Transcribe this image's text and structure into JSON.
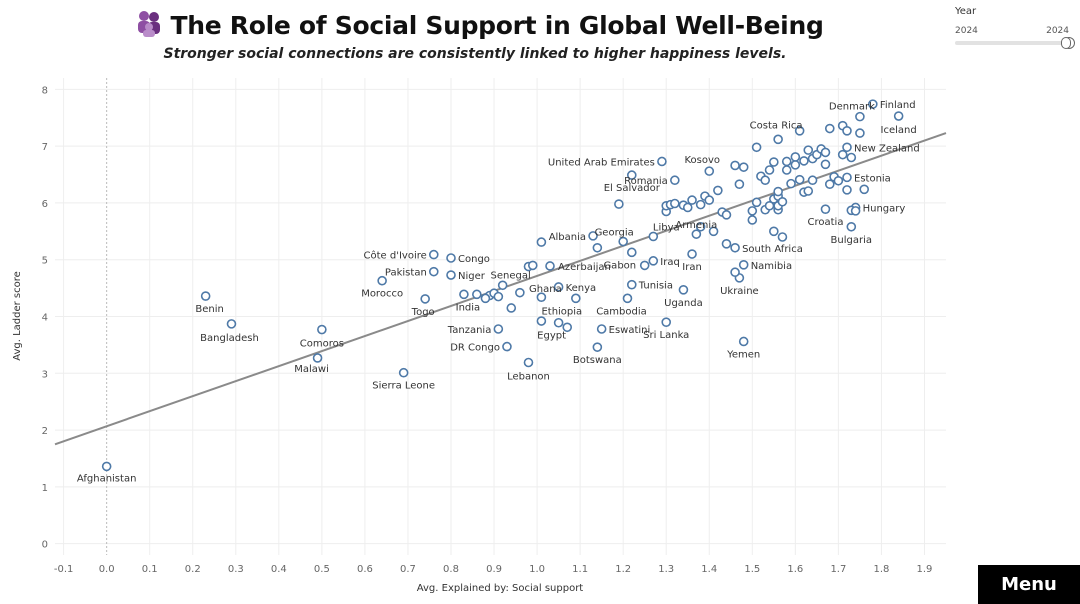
{
  "header": {
    "title": "The Role of Social Support in Global Well-Being",
    "subtitle": "Stronger social connections are consistently linked to higher happiness levels.",
    "icon": "people-group-icon"
  },
  "year_filter": {
    "label": "Year",
    "min_label": "2024",
    "max_label": "2024",
    "value": 2024
  },
  "menu": {
    "label": "Menu"
  },
  "colors": {
    "point": "#4e79a7",
    "trend": "#8a8a8a",
    "grid": "#eeeeee",
    "zero_line": "#bbbbbb",
    "accent_icon": "#7b3f8f"
  },
  "chart_data": {
    "type": "scatter",
    "title": "The Role of Social Support in Global Well-Being",
    "subtitle": "Stronger social connections are consistently linked to higher happiness levels.",
    "xlabel": "Avg. Explained by: Social support",
    "ylabel": "Avg. Ladder score",
    "xlim": [
      -0.12,
      1.95
    ],
    "ylim": [
      -0.2,
      8.2
    ],
    "x_ticks": [
      "-0.1",
      "0.0",
      "0.1",
      "0.2",
      "0.3",
      "0.4",
      "0.5",
      "0.6",
      "0.7",
      "0.8",
      "0.9",
      "1.0",
      "1.1",
      "1.2",
      "1.3",
      "1.4",
      "1.5",
      "1.6",
      "1.7",
      "1.8",
      "1.9"
    ],
    "x_tick_values": [
      -0.1,
      0.0,
      0.1,
      0.2,
      0.3,
      0.4,
      0.5,
      0.6,
      0.7,
      0.8,
      0.9,
      1.0,
      1.1,
      1.2,
      1.3,
      1.4,
      1.5,
      1.6,
      1.7,
      1.8,
      1.9
    ],
    "y_ticks": [
      "0",
      "1",
      "2",
      "3",
      "4",
      "5",
      "6",
      "7",
      "8"
    ],
    "y_tick_values": [
      0,
      1,
      2,
      3,
      4,
      5,
      6,
      7,
      8
    ],
    "grid": true,
    "trend_line": {
      "type": "linear",
      "x": [
        -0.12,
        1.95
      ],
      "y": [
        1.75,
        7.23
      ]
    },
    "points": [
      {
        "label": "Afghanistan",
        "x": 0.0,
        "y": 1.36
      },
      {
        "label": "Benin",
        "x": 0.23,
        "y": 4.36
      },
      {
        "label": "Bangladesh",
        "x": 0.29,
        "y": 3.87
      },
      {
        "label": "Comoros",
        "x": 0.5,
        "y": 3.77
      },
      {
        "label": "Malawi",
        "x": 0.49,
        "y": 3.27
      },
      {
        "label": "Sierra Leone",
        "x": 0.69,
        "y": 3.01
      },
      {
        "label": "Morocco",
        "x": 0.64,
        "y": 4.63
      },
      {
        "label": "Togo",
        "x": 0.74,
        "y": 4.31
      },
      {
        "label": "Pakistan",
        "x": 0.76,
        "y": 4.79
      },
      {
        "label": "Côte d'Ivoire",
        "x": 0.76,
        "y": 5.09
      },
      {
        "label": "Congo",
        "x": 0.8,
        "y": 5.03
      },
      {
        "label": "Niger",
        "x": 0.8,
        "y": 4.73
      },
      {
        "label": "India",
        "x": 0.83,
        "y": 4.39
      },
      {
        "label": "Tanzania",
        "x": 0.91,
        "y": 3.78
      },
      {
        "label": "DR Congo",
        "x": 0.93,
        "y": 3.47
      },
      {
        "label": "Lebanon",
        "x": 0.98,
        "y": 3.19
      },
      {
        "label": "Senegal",
        "x": 0.92,
        "y": 4.55
      },
      {
        "label": "Ghana",
        "x": 1.01,
        "y": 4.34
      },
      {
        "label": "Kenya",
        "x": 1.05,
        "y": 4.52
      },
      {
        "label": "Azerbaijan",
        "x": 1.03,
        "y": 4.89
      },
      {
        "label": "Albania",
        "x": 1.13,
        "y": 5.42
      },
      {
        "label": "Ethiopia",
        "x": 1.09,
        "y": 4.32
      },
      {
        "label": "Egypt",
        "x": 1.05,
        "y": 3.89
      },
      {
        "label": "Eswatini",
        "x": 1.15,
        "y": 3.78
      },
      {
        "label": "Botswana",
        "x": 1.14,
        "y": 3.46
      },
      {
        "label": "Cambodia",
        "x": 1.21,
        "y": 4.32
      },
      {
        "label": "Tunisia",
        "x": 1.22,
        "y": 4.56
      },
      {
        "label": "Gabon",
        "x": 1.22,
        "y": 5.13
      },
      {
        "label": "Iraq",
        "x": 1.27,
        "y": 4.98
      },
      {
        "label": "Georgia",
        "x": 1.2,
        "y": 5.32
      },
      {
        "label": "Libya",
        "x": 1.27,
        "y": 5.41
      },
      {
        "label": "Sri Lanka",
        "x": 1.3,
        "y": 3.9
      },
      {
        "label": "Uganda",
        "x": 1.34,
        "y": 4.47
      },
      {
        "label": "Iran",
        "x": 1.36,
        "y": 5.1
      },
      {
        "label": "Armenia",
        "x": 1.37,
        "y": 5.45
      },
      {
        "label": "El Salvador",
        "x": 1.22,
        "y": 6.49
      },
      {
        "label": "United Arab Emirates",
        "x": 1.29,
        "y": 6.73
      },
      {
        "label": "Romania",
        "x": 1.32,
        "y": 6.4
      },
      {
        "label": "Kosovo",
        "x": 1.4,
        "y": 6.56
      },
      {
        "label": "Namibia",
        "x": 1.48,
        "y": 4.91
      },
      {
        "label": "Ukraine",
        "x": 1.47,
        "y": 4.68
      },
      {
        "label": "South Africa",
        "x": 1.46,
        "y": 5.21
      },
      {
        "label": "Yemen",
        "x": 1.48,
        "y": 3.56
      },
      {
        "label": "Costa Rica",
        "x": 1.56,
        "y": 7.12
      },
      {
        "label": "Denmark",
        "x": 1.75,
        "y": 7.52
      },
      {
        "label": "Finland",
        "x": 1.78,
        "y": 7.74
      },
      {
        "label": "Iceland",
        "x": 1.84,
        "y": 7.53
      },
      {
        "label": "New Zealand",
        "x": 1.72,
        "y": 6.98
      },
      {
        "label": "Estonia",
        "x": 1.72,
        "y": 6.45
      },
      {
        "label": "Hungary",
        "x": 1.74,
        "y": 5.92
      },
      {
        "label": "Croatia",
        "x": 1.67,
        "y": 5.89
      },
      {
        "label": "Bulgaria",
        "x": 1.73,
        "y": 5.58
      },
      {
        "label": "",
        "x": 0.89,
        "y": 4.37
      },
      {
        "label": "",
        "x": 0.86,
        "y": 4.39
      },
      {
        "label": "",
        "x": 0.88,
        "y": 4.32
      },
      {
        "label": "",
        "x": 0.9,
        "y": 4.41
      },
      {
        "label": "",
        "x": 0.91,
        "y": 4.35
      },
      {
        "label": "",
        "x": 0.94,
        "y": 4.15
      },
      {
        "label": "",
        "x": 0.96,
        "y": 4.42
      },
      {
        "label": "",
        "x": 0.98,
        "y": 4.88
      },
      {
        "label": "",
        "x": 0.99,
        "y": 4.9
      },
      {
        "label": "",
        "x": 1.01,
        "y": 5.31
      },
      {
        "label": "",
        "x": 1.01,
        "y": 3.92
      },
      {
        "label": "",
        "x": 1.07,
        "y": 3.81
      },
      {
        "label": "",
        "x": 1.14,
        "y": 5.21
      },
      {
        "label": "",
        "x": 1.19,
        "y": 5.98
      },
      {
        "label": "",
        "x": 1.25,
        "y": 4.9
      },
      {
        "label": "",
        "x": 1.3,
        "y": 5.85
      },
      {
        "label": "",
        "x": 1.3,
        "y": 5.95
      },
      {
        "label": "",
        "x": 1.31,
        "y": 5.97
      },
      {
        "label": "",
        "x": 1.32,
        "y": 5.99
      },
      {
        "label": "",
        "x": 1.34,
        "y": 5.96
      },
      {
        "label": "",
        "x": 1.35,
        "y": 5.92
      },
      {
        "label": "",
        "x": 1.36,
        "y": 6.05
      },
      {
        "label": "",
        "x": 1.38,
        "y": 5.58
      },
      {
        "label": "",
        "x": 1.38,
        "y": 5.97
      },
      {
        "label": "",
        "x": 1.39,
        "y": 6.12
      },
      {
        "label": "",
        "x": 1.4,
        "y": 6.05
      },
      {
        "label": "",
        "x": 1.41,
        "y": 5.5
      },
      {
        "label": "",
        "x": 1.42,
        "y": 6.22
      },
      {
        "label": "",
        "x": 1.43,
        "y": 5.84
      },
      {
        "label": "",
        "x": 1.44,
        "y": 5.79
      },
      {
        "label": "",
        "x": 1.44,
        "y": 5.28
      },
      {
        "label": "",
        "x": 1.46,
        "y": 4.78
      },
      {
        "label": "",
        "x": 1.46,
        "y": 6.66
      },
      {
        "label": "",
        "x": 1.47,
        "y": 6.33
      },
      {
        "label": "",
        "x": 1.48,
        "y": 6.63
      },
      {
        "label": "",
        "x": 1.5,
        "y": 5.7
      },
      {
        "label": "",
        "x": 1.5,
        "y": 5.86
      },
      {
        "label": "",
        "x": 1.51,
        "y": 6.98
      },
      {
        "label": "",
        "x": 1.51,
        "y": 6.01
      },
      {
        "label": "",
        "x": 1.52,
        "y": 6.47
      },
      {
        "label": "",
        "x": 1.53,
        "y": 6.4
      },
      {
        "label": "",
        "x": 1.53,
        "y": 5.88
      },
      {
        "label": "",
        "x": 1.54,
        "y": 6.58
      },
      {
        "label": "",
        "x": 1.54,
        "y": 5.95
      },
      {
        "label": "",
        "x": 1.55,
        "y": 6.72
      },
      {
        "label": "",
        "x": 1.55,
        "y": 6.07
      },
      {
        "label": "",
        "x": 1.55,
        "y": 5.5
      },
      {
        "label": "",
        "x": 1.56,
        "y": 6.12
      },
      {
        "label": "",
        "x": 1.56,
        "y": 6.2
      },
      {
        "label": "",
        "x": 1.56,
        "y": 5.88
      },
      {
        "label": "",
        "x": 1.56,
        "y": 5.95
      },
      {
        "label": "",
        "x": 1.57,
        "y": 5.4
      },
      {
        "label": "",
        "x": 1.57,
        "y": 6.02
      },
      {
        "label": "",
        "x": 1.58,
        "y": 6.58
      },
      {
        "label": "",
        "x": 1.58,
        "y": 6.73
      },
      {
        "label": "",
        "x": 1.59,
        "y": 6.34
      },
      {
        "label": "",
        "x": 1.6,
        "y": 6.67
      },
      {
        "label": "",
        "x": 1.6,
        "y": 6.81
      },
      {
        "label": "",
        "x": 1.61,
        "y": 6.41
      },
      {
        "label": "",
        "x": 1.61,
        "y": 7.27
      },
      {
        "label": "",
        "x": 1.62,
        "y": 6.74
      },
      {
        "label": "",
        "x": 1.62,
        "y": 6.19
      },
      {
        "label": "",
        "x": 1.63,
        "y": 6.93
      },
      {
        "label": "",
        "x": 1.63,
        "y": 6.21
      },
      {
        "label": "",
        "x": 1.64,
        "y": 6.4
      },
      {
        "label": "",
        "x": 1.64,
        "y": 6.78
      },
      {
        "label": "",
        "x": 1.65,
        "y": 6.85
      },
      {
        "label": "",
        "x": 1.66,
        "y": 6.95
      },
      {
        "label": "",
        "x": 1.67,
        "y": 6.89
      },
      {
        "label": "",
        "x": 1.67,
        "y": 6.68
      },
      {
        "label": "",
        "x": 1.68,
        "y": 7.31
      },
      {
        "label": "",
        "x": 1.68,
        "y": 6.33
      },
      {
        "label": "",
        "x": 1.69,
        "y": 6.46
      },
      {
        "label": "",
        "x": 1.7,
        "y": 6.39
      },
      {
        "label": "",
        "x": 1.71,
        "y": 7.36
      },
      {
        "label": "",
        "x": 1.71,
        "y": 6.85
      },
      {
        "label": "",
        "x": 1.72,
        "y": 7.27
      },
      {
        "label": "",
        "x": 1.72,
        "y": 6.23
      },
      {
        "label": "",
        "x": 1.73,
        "y": 5.87
      },
      {
        "label": "",
        "x": 1.73,
        "y": 6.8
      },
      {
        "label": "",
        "x": 1.74,
        "y": 5.86
      },
      {
        "label": "",
        "x": 1.75,
        "y": 7.23
      },
      {
        "label": "",
        "x": 1.76,
        "y": 6.24
      }
    ]
  }
}
